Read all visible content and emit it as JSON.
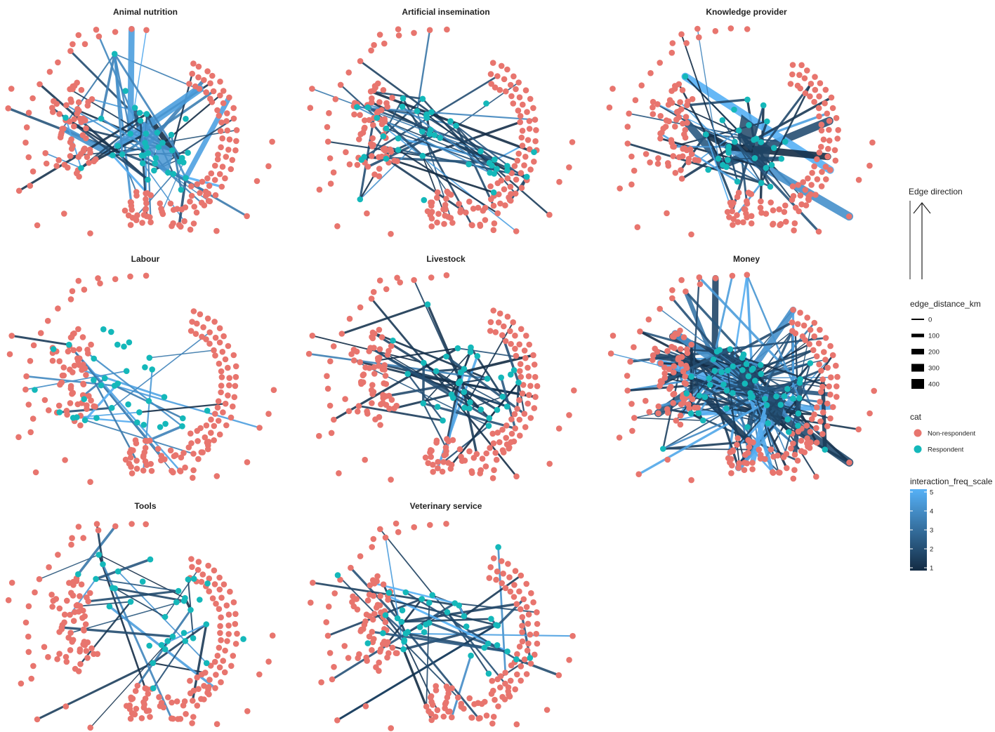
{
  "panels": [
    {
      "title": "Animal nutrition",
      "kind": "nutrition"
    },
    {
      "title": "Artificial insemination",
      "kind": "ai"
    },
    {
      "title": "Knowledge provider",
      "kind": "knowledge"
    },
    {
      "title": "Labour",
      "kind": "labour"
    },
    {
      "title": "Livestock",
      "kind": "livestock"
    },
    {
      "title": "Money",
      "kind": "money"
    },
    {
      "title": "Tools",
      "kind": "tools"
    },
    {
      "title": "Veterinary service",
      "kind": "vet"
    }
  ],
  "legend": {
    "edge_direction": {
      "title": "Edge direction"
    },
    "edge_distance": {
      "title": "edge_distance_km",
      "breaks": [
        "0",
        "100",
        "200",
        "300",
        "400"
      ]
    },
    "cat": {
      "title": "cat",
      "items": [
        {
          "label": "Non-respondent",
          "color": "#E8756E"
        },
        {
          "label": "Respondent",
          "color": "#14B8BA"
        }
      ]
    },
    "interaction_freq": {
      "title": "interaction_freq_scale",
      "ticks": [
        "5",
        "4",
        "3",
        "2",
        "1"
      ],
      "color_low": "#132B43",
      "color_high": "#56B1F7"
    }
  }
}
